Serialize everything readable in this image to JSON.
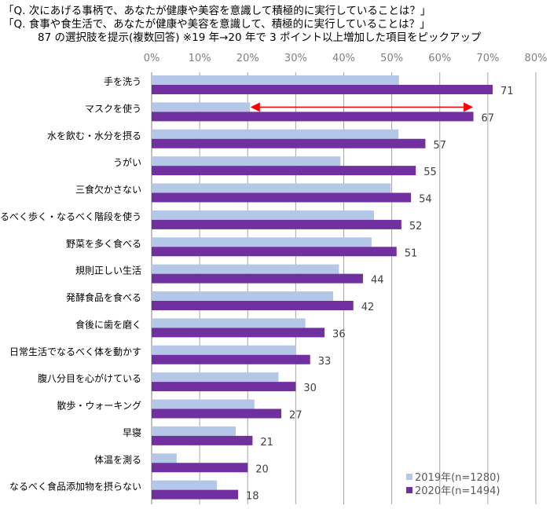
{
  "chart_data": {
    "type": "bar",
    "orientation": "horizontal",
    "title_lines": [
      "「Q. 次にあげる事柄で、あなたが健康や美容を意識して積極的に実行していることは？」",
      "「Q. 食事や食生活で、あなたが健康や美容を意識して、積極的に実行していることは？」",
      "87 の選択肢を提示(複数回答) ※19 年→20 年で 3 ポイント以上増加した項目をピックアップ"
    ],
    "xlim": [
      0,
      80
    ],
    "xticks": [
      "0%",
      "10%",
      "20%",
      "30%",
      "40%",
      "50%",
      "60%",
      "70%",
      "80%"
    ],
    "grid": true,
    "legend_position": "bottom-right",
    "categories": [
      "手を洗う",
      "マスクを使う",
      "水を飲む・水分を摂る",
      "うがい",
      "三食欠かさない",
      "なるべく歩く・なるべく階段を使う",
      "野菜を多く食べる",
      "規則正しい生活",
      "発酵食品を食べる",
      "食後に歯を磨く",
      "日常生活でなるべく体を動かす",
      "腹八分目を心がけている",
      "散歩・ウォーキング",
      "早寝",
      "体温を測る",
      "なるべく食品添加物を摂らない"
    ],
    "series": [
      {
        "name": "2019年(n=1280)",
        "color": "#b4c7e7",
        "values": [
          51.5,
          20.5,
          51.4,
          39.3,
          49.8,
          46.3,
          45.8,
          39,
          37.8,
          32,
          30.1,
          26.4,
          21.4,
          17.5,
          5.2,
          13.6
        ]
      },
      {
        "name": "2020年(n=1494)",
        "color": "#7030a0",
        "values": [
          71,
          67,
          57,
          55,
          54,
          52,
          51,
          44,
          42,
          36,
          33,
          30,
          27,
          21,
          20,
          18
        ],
        "labels": [
          "71",
          "67",
          "57",
          "55",
          "54",
          "52",
          "51",
          "44",
          "42",
          "36",
          "33",
          "30",
          "27",
          "21",
          "20",
          "18"
        ]
      }
    ],
    "annotation": {
      "type": "double-arrow",
      "category": "マスクを使う",
      "from": 20.5,
      "to": 67,
      "color": "#ff0000"
    }
  }
}
